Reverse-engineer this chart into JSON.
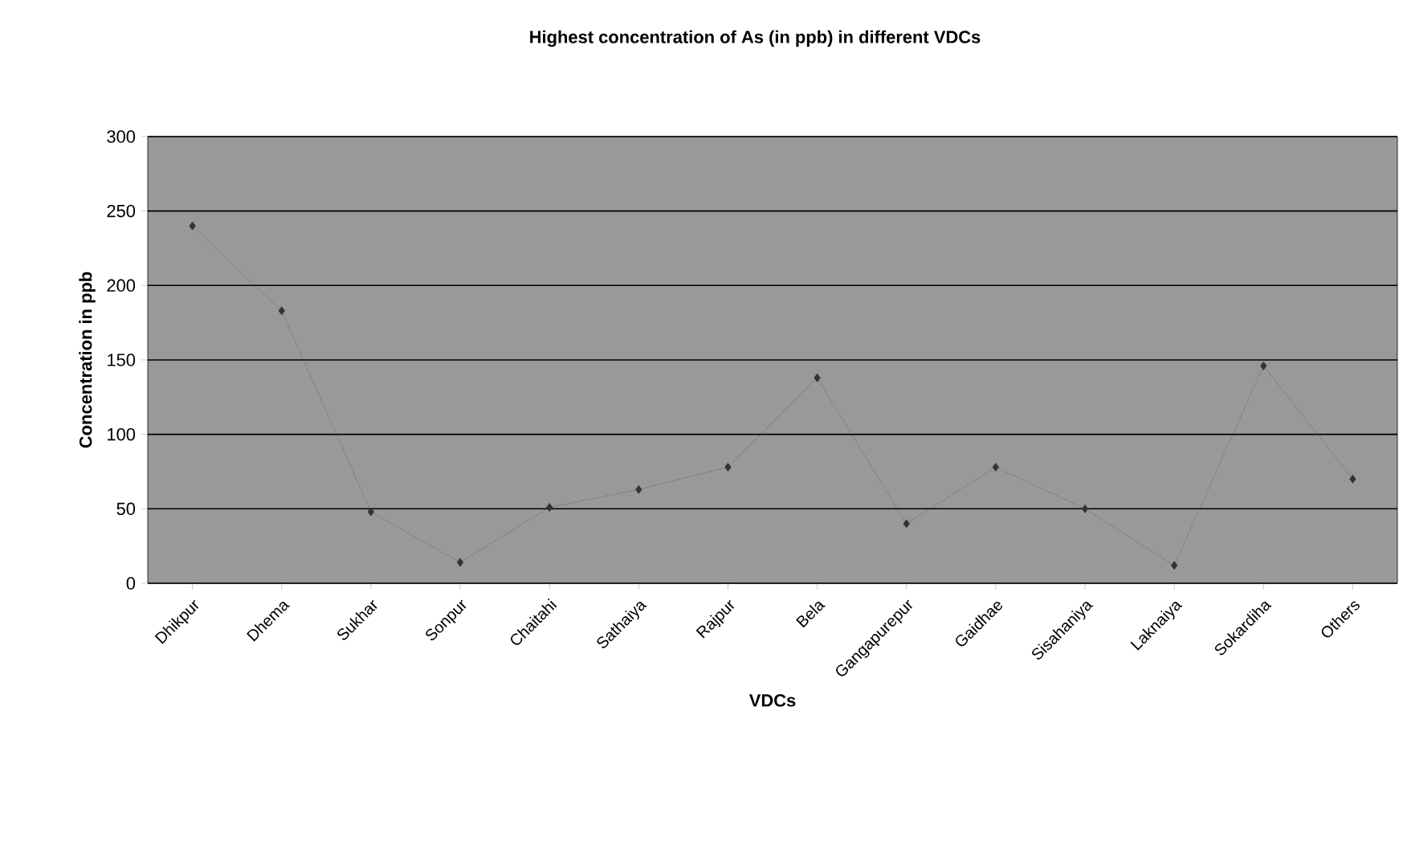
{
  "chart_data": {
    "type": "line",
    "title": "Highest concentration of As (in ppb) in different VDCs",
    "xlabel": "VDCs",
    "ylabel": "Concentration in ppb",
    "categories": [
      "Dhikpur",
      "Dhema",
      "Sukhar",
      "Sonpur",
      "Chaitahi",
      "Sathaiya",
      "Rajpur",
      "Bela",
      "Gangapurepur",
      "Gaidhae",
      "Sisahaniya",
      "Laknaiya",
      "Sokardiha",
      "Others"
    ],
    "values": [
      240,
      183,
      48,
      14,
      51,
      63,
      78,
      138,
      40,
      78,
      50,
      12,
      146,
      70
    ],
    "color": "#333333",
    "ylim": [
      0,
      300
    ],
    "yticks": [
      0,
      50,
      100,
      150,
      200,
      250,
      300
    ],
    "grid": "y",
    "marker": "diamond",
    "line_style": "dotted"
  }
}
